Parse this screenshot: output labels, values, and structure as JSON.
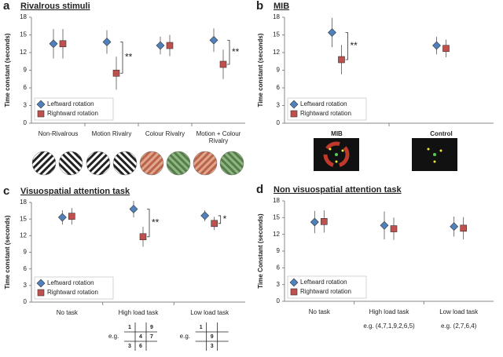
{
  "chart_data": [
    {
      "type": "scatter",
      "label": "a",
      "title": "Rivalrous stimuli",
      "ylabel": "Time constant (seconds)",
      "categories": [
        "Non-Rivalrous",
        "Motion Rivalry",
        "Colour Rivalry",
        "Motion + Colour Rivalry"
      ],
      "ylim": [
        0,
        18
      ],
      "yticks": [
        0,
        3,
        6,
        9,
        12,
        15,
        18
      ],
      "legend": "lower left",
      "series": [
        {
          "name": "Leftward rotation",
          "color": "#4f81bd",
          "marker": "diamond",
          "values": [
            13.5,
            13.8,
            13.2,
            14.1
          ],
          "errors": [
            2.5,
            2.0,
            1.5,
            2.0
          ]
        },
        {
          "name": "Rightward rotation",
          "color": "#c0504d",
          "marker": "square",
          "values": [
            13.5,
            8.5,
            13.2,
            10.0
          ],
          "errors": [
            2.5,
            2.8,
            1.8,
            2.5
          ]
        }
      ],
      "annotations": [
        {
          "text": "**",
          "category": "Motion Rivalry"
        },
        {
          "text": "**",
          "category": "Motion + Colour Rivalry"
        }
      ]
    },
    {
      "type": "scatter",
      "label": "b",
      "title": "MIB",
      "ylabel": "Time constant (seconds)",
      "categories": [
        null,
        null
      ],
      "image_labels": [
        "MIB",
        "Control"
      ],
      "ylim": [
        0,
        18
      ],
      "yticks": [
        0,
        3,
        6,
        9,
        12,
        15,
        18
      ],
      "legend": "lower left",
      "series": [
        {
          "name": "Leftward rotation",
          "color": "#4f81bd",
          "marker": "diamond",
          "values": [
            15.4,
            13.2
          ],
          "errors": [
            2.5,
            1.5
          ]
        },
        {
          "name": "Rightward rotation",
          "color": "#c0504d",
          "marker": "square",
          "values": [
            10.8,
            12.7
          ],
          "errors": [
            2.5,
            1.5
          ]
        }
      ],
      "annotations": [
        {
          "text": "**",
          "category": 0
        }
      ]
    },
    {
      "type": "scatter",
      "label": "c",
      "title": "Visuospatial attention task",
      "ylabel": "Time constant (seconds)",
      "categories": [
        "No task",
        "High load task",
        "Low load task"
      ],
      "ylim": [
        0,
        18
      ],
      "yticks": [
        0,
        3,
        6,
        9,
        12,
        15,
        18
      ],
      "legend": "lower left",
      "series": [
        {
          "name": "Leftward rotation",
          "color": "#4f81bd",
          "marker": "diamond",
          "values": [
            15.3,
            16.8,
            15.6
          ],
          "errors": [
            1.3,
            1.5,
            1.0
          ]
        },
        {
          "name": "Rightward rotation",
          "color": "#c0504d",
          "marker": "square",
          "values": [
            15.5,
            11.8,
            14.2
          ],
          "errors": [
            1.5,
            1.8,
            1.2
          ]
        }
      ],
      "annotations": [
        {
          "text": "**",
          "category": "High load task"
        },
        {
          "text": "*",
          "category": "Low load task"
        }
      ],
      "examples": [
        null,
        {
          "prefix": "e.g.",
          "cells": [
            [
              "1",
              null,
              "9"
            ],
            [
              null,
              "4",
              "7"
            ],
            [
              "3",
              "6",
              null
            ]
          ]
        },
        {
          "prefix": "e.g.",
          "cells": [
            [
              "1",
              null,
              null
            ],
            [
              null,
              "9",
              null
            ],
            [
              null,
              "3",
              null
            ]
          ]
        }
      ]
    },
    {
      "type": "scatter",
      "label": "d",
      "title": "Non visuospatial attention task",
      "ylabel": "Time Constant (seconds)",
      "categories": [
        "No task",
        "High load task",
        "Low load task"
      ],
      "notes": [
        null,
        "e.g. (4,7,1,9,2,6,5)",
        "e.g. (2,7,6,4)"
      ],
      "ylim": [
        0,
        18
      ],
      "yticks": [
        0,
        3,
        6,
        9,
        12,
        15,
        18
      ],
      "legend": "lower left",
      "series": [
        {
          "name": "Leftward rotation",
          "color": "#4f81bd",
          "marker": "diamond",
          "values": [
            14.2,
            13.6,
            13.4
          ],
          "errors": [
            2.0,
            2.5,
            1.8
          ]
        },
        {
          "name": "Rightward rotation",
          "color": "#c0504d",
          "marker": "square",
          "values": [
            14.3,
            13.0,
            13.1
          ],
          "errors": [
            2.0,
            2.0,
            2.0
          ]
        }
      ]
    }
  ]
}
